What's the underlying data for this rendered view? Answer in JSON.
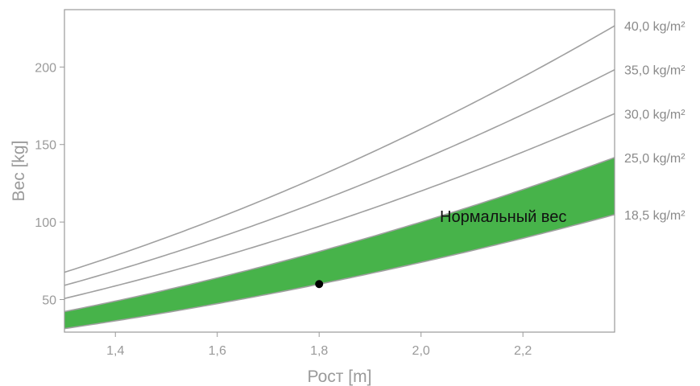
{
  "chart_data": {
    "type": "line",
    "xlabel": "Рост [m]",
    "ylabel": "Вес [kg]",
    "xlim": [
      1.3,
      2.38
    ],
    "ylim": [
      29,
      237
    ],
    "x_ticks": [
      {
        "value": 1.4,
        "label": "1,4"
      },
      {
        "value": 1.6,
        "label": "1,6"
      },
      {
        "value": 1.8,
        "label": "1,8"
      },
      {
        "value": 2.0,
        "label": "2,0"
      },
      {
        "value": 2.2,
        "label": "2,2"
      }
    ],
    "y_ticks": [
      {
        "value": 50,
        "label": "50"
      },
      {
        "value": 100,
        "label": "100"
      },
      {
        "value": 150,
        "label": "150"
      },
      {
        "value": 200,
        "label": "200"
      }
    ],
    "grid": false,
    "series": [
      {
        "bmi": 18.5,
        "label": "18,5 kg/m²"
      },
      {
        "bmi": 25.0,
        "label": "25,0 kg/m²"
      },
      {
        "bmi": 30.0,
        "label": "30,0 kg/m²"
      },
      {
        "bmi": 35.0,
        "label": "35,0 kg/m²"
      },
      {
        "bmi": 40.0,
        "label": "40,0 kg/m²"
      }
    ],
    "normal_band": {
      "from_bmi": 18.5,
      "to_bmi": 25.0,
      "label": "Нормальный вес",
      "color": "#47b34a"
    },
    "point": {
      "x": 1.8,
      "y": 60
    },
    "colors": {
      "curve": "#a0a0a0",
      "frame": "#9a9a9a",
      "point": "#000000"
    }
  }
}
